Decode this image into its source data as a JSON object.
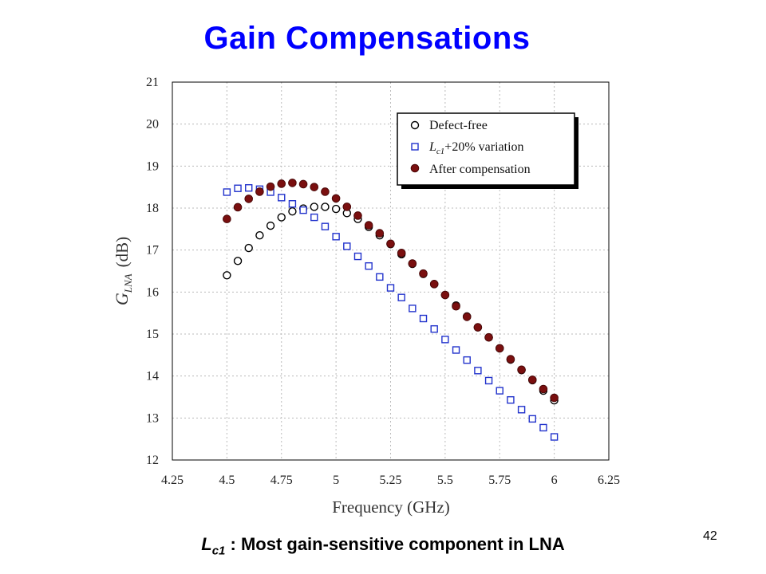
{
  "slide": {
    "title": "Gain Compensations",
    "caption_symbol": "L",
    "caption_subscript": "c1",
    "caption_text": " : Most gain-sensitive component in LNA",
    "page_number": "42"
  },
  "chart_data": {
    "type": "scatter",
    "title": "",
    "xlabel": "Frequency (GHz)",
    "ylabel_symbol": "G",
    "ylabel_subscript": "LNA",
    "ylabel_unit": "(dB)",
    "xlim": [
      4.25,
      6.25
    ],
    "ylim": [
      12,
      21
    ],
    "xticks": [
      4.25,
      4.5,
      4.75,
      5,
      5.25,
      5.5,
      5.75,
      6,
      6.25
    ],
    "xtick_labels": [
      "4.25",
      "4.5",
      "4.75",
      "5",
      "5.25",
      "5.5",
      "5.75",
      "6",
      "6.25"
    ],
    "yticks": [
      12,
      13,
      14,
      15,
      16,
      17,
      18,
      19,
      20,
      21
    ],
    "ytick_labels": [
      "12",
      "13",
      "14",
      "15",
      "16",
      "17",
      "18",
      "19",
      "20",
      "21"
    ],
    "grid": true,
    "legend_position": "top-right",
    "x": [
      4.5,
      4.55,
      4.6,
      4.65,
      4.7,
      4.75,
      4.8,
      4.85,
      4.9,
      4.95,
      5.0,
      5.05,
      5.1,
      5.15,
      5.2,
      5.25,
      5.3,
      5.35,
      5.4,
      5.45,
      5.5,
      5.55,
      5.6,
      5.65,
      5.7,
      5.75,
      5.8,
      5.85,
      5.9,
      5.95,
      6.0
    ],
    "series": [
      {
        "name": "Defect-free",
        "marker": "open-circle",
        "color": "#000000",
        "values": [
          16.4,
          16.74,
          17.05,
          17.35,
          17.58,
          17.78,
          17.92,
          17.99,
          18.03,
          18.03,
          17.98,
          17.88,
          17.74,
          17.55,
          17.35,
          17.14,
          16.9,
          16.67,
          16.43,
          16.19,
          15.93,
          15.68,
          15.42,
          15.16,
          14.92,
          14.66,
          14.39,
          14.14,
          13.9,
          13.65,
          13.42
        ]
      },
      {
        "name": "+20% variation",
        "name_symbol": "L",
        "name_subscript": "c1",
        "marker": "open-square",
        "color": "#2233cc",
        "values": [
          18.38,
          18.47,
          18.48,
          18.45,
          18.38,
          18.25,
          18.1,
          17.95,
          17.78,
          17.56,
          17.32,
          17.09,
          16.85,
          16.62,
          16.36,
          16.1,
          15.87,
          15.61,
          15.37,
          15.12,
          14.87,
          14.62,
          14.38,
          14.13,
          13.89,
          13.65,
          13.43,
          13.2,
          12.98,
          12.77,
          12.55
        ]
      },
      {
        "name": "After compensation",
        "marker": "filled-circle",
        "color": "#7a0f0f",
        "values": [
          17.74,
          18.02,
          18.22,
          18.39,
          18.51,
          18.58,
          18.6,
          18.57,
          18.5,
          18.39,
          18.23,
          18.03,
          17.82,
          17.59,
          17.4,
          17.15,
          16.93,
          16.68,
          16.44,
          16.19,
          15.93,
          15.66,
          15.41,
          15.16,
          14.92,
          14.66,
          14.4,
          14.15,
          13.91,
          13.69,
          13.48
        ]
      }
    ]
  }
}
